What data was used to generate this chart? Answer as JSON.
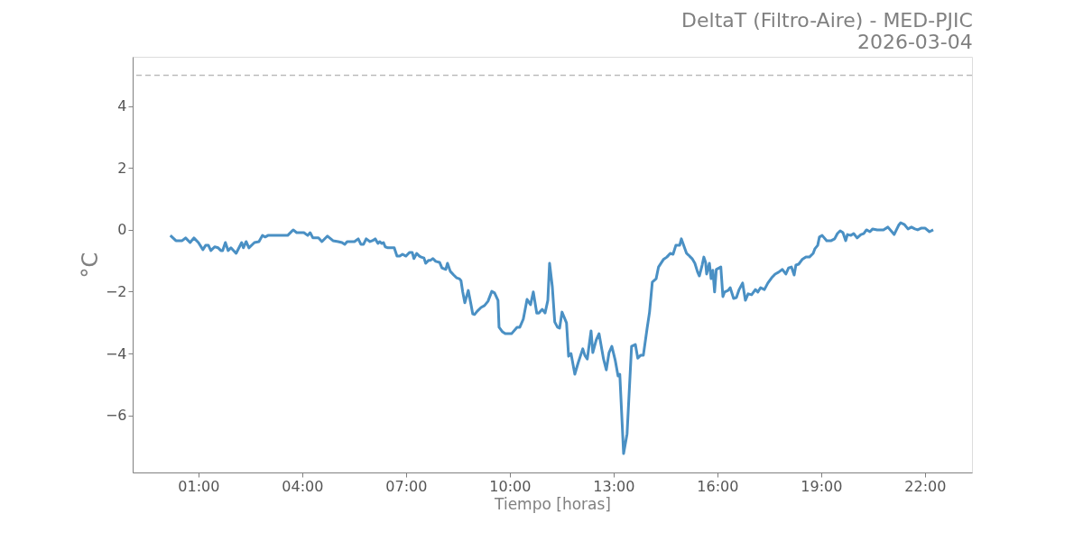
{
  "chart_data": {
    "type": "line",
    "title": "DeltaT (Filtro-Aire) - MED-PJIC",
    "subtitle": "2026-03-04",
    "xlabel": "Tiempo [horas]",
    "ylabel": "°C",
    "x": [
      0.19,
      0.35,
      0.53,
      0.63,
      0.76,
      0.87,
      1.0,
      1.13,
      1.21,
      1.29,
      1.36,
      1.47,
      1.57,
      1.65,
      1.7,
      1.78,
      1.86,
      1.94,
      2.09,
      2.25,
      2.3,
      2.38,
      2.46,
      2.62,
      2.75,
      2.85,
      2.93,
      3.01,
      3.58,
      3.74,
      3.84,
      4.05,
      4.16,
      4.23,
      4.31,
      4.47,
      4.57,
      4.73,
      4.89,
      5.04,
      5.15,
      5.23,
      5.3,
      5.51,
      5.62,
      5.7,
      5.77,
      5.85,
      5.96,
      6.03,
      6.11,
      6.19,
      6.24,
      6.3,
      6.35,
      6.4,
      6.48,
      6.66,
      6.74,
      6.82,
      6.9,
      7.0,
      7.1,
      7.18,
      7.23,
      7.31,
      7.39,
      7.44,
      7.52,
      7.57,
      7.65,
      7.7,
      7.78,
      7.86,
      7.97,
      8.04,
      8.15,
      8.2,
      8.28,
      8.38,
      8.46,
      8.54,
      8.59,
      8.64,
      8.7,
      8.75,
      8.8,
      8.88,
      8.93,
      8.98,
      9.06,
      9.17,
      9.27,
      9.37,
      9.48,
      9.56,
      9.66,
      9.69,
      9.79,
      9.87,
      10.05,
      10.21,
      10.29,
      10.39,
      10.5,
      10.6,
      10.68,
      10.78,
      10.84,
      10.94,
      11.02,
      11.1,
      11.15,
      11.23,
      11.3,
      11.38,
      11.44,
      11.51,
      11.64,
      11.7,
      11.77,
      11.88,
      11.98,
      12.11,
      12.17,
      12.24,
      12.35,
      12.4,
      12.5,
      12.58,
      12.71,
      12.79,
      12.87,
      12.95,
      13.05,
      13.13,
      13.18,
      13.29,
      13.39,
      13.52,
      13.63,
      13.7,
      13.78,
      13.86,
      13.97,
      14.04,
      14.12,
      14.23,
      14.3,
      14.44,
      14.54,
      14.64,
      14.72,
      14.8,
      14.91,
      14.96,
      15.11,
      15.17,
      15.27,
      15.35,
      15.43,
      15.48,
      15.56,
      15.61,
      15.66,
      15.69,
      15.77,
      15.82,
      15.87,
      15.92,
      15.97,
      16.1,
      16.16,
      16.21,
      16.31,
      16.37,
      16.47,
      16.55,
      16.63,
      16.73,
      16.81,
      16.89,
      16.99,
      17.1,
      17.17,
      17.25,
      17.36,
      17.46,
      17.57,
      17.67,
      17.77,
      17.88,
      17.98,
      18.06,
      18.14,
      18.22,
      18.27,
      18.35,
      18.45,
      18.56,
      18.66,
      18.77,
      18.82,
      18.9,
      18.95,
      19.03,
      19.16,
      19.29,
      19.39,
      19.47,
      19.55,
      19.63,
      19.71,
      19.76,
      19.86,
      19.94,
      20.04,
      20.15,
      20.23,
      20.31,
      20.41,
      20.49,
      20.62,
      20.8,
      20.93,
      21.11,
      21.24,
      21.3,
      21.4,
      21.51,
      21.61,
      21.71,
      21.79,
      21.9,
      22.0,
      22.13,
      22.24
    ],
    "series": [
      {
        "color": "#4a90c4",
        "values": [
          -0.18,
          -0.35,
          -0.35,
          -0.26,
          -0.41,
          -0.26,
          -0.41,
          -0.64,
          -0.5,
          -0.5,
          -0.67,
          -0.55,
          -0.58,
          -0.67,
          -0.67,
          -0.41,
          -0.67,
          -0.58,
          -0.76,
          -0.41,
          -0.58,
          -0.38,
          -0.58,
          -0.41,
          -0.38,
          -0.18,
          -0.23,
          -0.18,
          -0.18,
          0,
          -0.09,
          -0.09,
          -0.18,
          -0.09,
          -0.26,
          -0.26,
          -0.38,
          -0.2,
          -0.35,
          -0.38,
          -0.41,
          -0.47,
          -0.38,
          -0.38,
          -0.29,
          -0.47,
          -0.47,
          -0.29,
          -0.38,
          -0.35,
          -0.29,
          -0.44,
          -0.38,
          -0.44,
          -0.41,
          -0.55,
          -0.58,
          -0.58,
          -0.85,
          -0.85,
          -0.79,
          -0.85,
          -0.73,
          -0.73,
          -0.93,
          -0.76,
          -0.85,
          -0.88,
          -0.91,
          -1.08,
          -0.99,
          -0.99,
          -0.93,
          -1.02,
          -1.05,
          -1.23,
          -1.28,
          -1.08,
          -1.34,
          -1.46,
          -1.55,
          -1.58,
          -1.64,
          -2.01,
          -2.36,
          -2.16,
          -1.96,
          -2.42,
          -2.72,
          -2.74,
          -2.63,
          -2.51,
          -2.45,
          -2.31,
          -1.99,
          -2.04,
          -2.28,
          -3.15,
          -3.3,
          -3.36,
          -3.36,
          -3.15,
          -3.15,
          -2.89,
          -2.25,
          -2.42,
          -2.01,
          -2.69,
          -2.69,
          -2.57,
          -2.69,
          -2.28,
          -1.08,
          -1.84,
          -2.98,
          -3.15,
          -3.18,
          -2.66,
          -3.01,
          -4.09,
          -4.0,
          -4.67,
          -4.29,
          -3.85,
          -4.06,
          -4.18,
          -3.27,
          -3.97,
          -3.56,
          -3.36,
          -4.18,
          -4.53,
          -3.97,
          -3.77,
          -4.23,
          -4.73,
          -4.67,
          -7.24,
          -6.6,
          -3.77,
          -3.71,
          -4.15,
          -4.06,
          -4.06,
          -3.18,
          -2.66,
          -1.69,
          -1.58,
          -1.2,
          -0.96,
          -0.88,
          -0.76,
          -0.79,
          -0.5,
          -0.5,
          -0.29,
          -0.76,
          -0.82,
          -0.93,
          -1.08,
          -1.37,
          -1.49,
          -1.14,
          -0.88,
          -1.05,
          -1.43,
          -1.08,
          -1.58,
          -1.31,
          -2.01,
          -1.28,
          -1.2,
          -2.16,
          -2.01,
          -1.96,
          -1.87,
          -2.22,
          -2.19,
          -1.93,
          -1.72,
          -2.28,
          -2.07,
          -2.1,
          -1.93,
          -2.01,
          -1.87,
          -1.93,
          -1.72,
          -1.55,
          -1.43,
          -1.37,
          -1.28,
          -1.43,
          -1.23,
          -1.2,
          -1.46,
          -1.14,
          -1.11,
          -0.96,
          -0.88,
          -0.88,
          -0.76,
          -0.61,
          -0.5,
          -0.23,
          -0.18,
          -0.35,
          -0.35,
          -0.29,
          -0.12,
          -0.03,
          -0.09,
          -0.35,
          -0.15,
          -0.18,
          -0.12,
          -0.26,
          -0.15,
          -0.12,
          0,
          -0.06,
          0.03,
          0,
          0,
          0.09,
          -0.15,
          0.15,
          0.23,
          0.18,
          0.03,
          0.09,
          0.03,
          0,
          0.06,
          0.06,
          -0.06,
          0
        ]
      }
    ],
    "xlim": [
      -0.9,
      23.36
    ],
    "xticks": [
      {
        "value": 1,
        "label": "01:00"
      },
      {
        "value": 4,
        "label": "04:00"
      },
      {
        "value": 7,
        "label": "07:00"
      },
      {
        "value": 10,
        "label": "10:00"
      },
      {
        "value": 13,
        "label": "13:00"
      },
      {
        "value": 16,
        "label": "16:00"
      },
      {
        "value": 19,
        "label": "19:00"
      },
      {
        "value": 22,
        "label": "22:00"
      }
    ],
    "ylim": [
      -7.85,
      5.6
    ],
    "yticks": [
      {
        "value": -6,
        "label": "−6"
      },
      {
        "value": -4,
        "label": "−4"
      },
      {
        "value": -2,
        "label": "−2"
      },
      0,
      2,
      4
    ],
    "ref_lines": [
      {
        "axis": "y",
        "value": 5,
        "label": null,
        "color": "#bbbbbb",
        "line_style": "dashed"
      }
    ],
    "grid": false,
    "marker": "none",
    "line_style": "solid"
  }
}
